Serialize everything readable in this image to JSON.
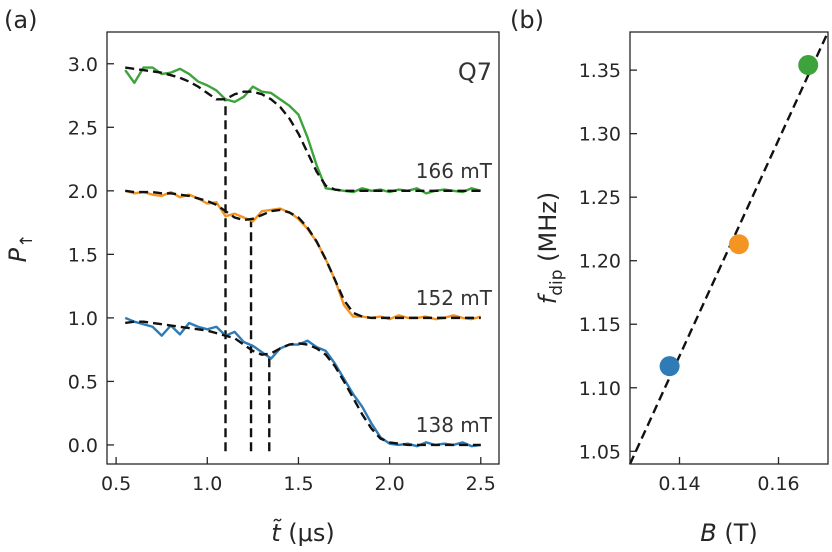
{
  "figure": {
    "panel_a_label": "(a)",
    "panel_b_label": "(b)",
    "panel_a_annotation": "Q7"
  },
  "colors": {
    "blue": "#2f7bb6",
    "orange": "#f39423",
    "green": "#3ea33a",
    "fit": "#111111",
    "axes": "#262626"
  },
  "chart_data": [
    {
      "type": "line",
      "panel": "a",
      "xlabel_main": "t̃",
      "xlabel_unit": " (μs)",
      "ylabel_main": "P",
      "ylabel_sub": "↑",
      "xlim": [
        0.45,
        2.6
      ],
      "ylim": [
        -0.15,
        3.25
      ],
      "xticks": [
        0.5,
        1.0,
        1.5,
        2.0,
        2.5
      ],
      "xtick_labels": [
        "0.5",
        "1.0",
        "1.5",
        "2.0",
        "2.5"
      ],
      "yticks": [
        0.0,
        0.5,
        1.0,
        1.5,
        2.0,
        2.5,
        3.0
      ],
      "ytick_labels": [
        "0.0",
        "0.5",
        "1.0",
        "1.5",
        "2.0",
        "2.5",
        "3.0"
      ],
      "grid": false,
      "series": [
        {
          "name": "138 mT",
          "color": "blue",
          "x": [
            0.55,
            0.6,
            0.65,
            0.7,
            0.75,
            0.8,
            0.85,
            0.9,
            0.95,
            1.0,
            1.05,
            1.1,
            1.15,
            1.2,
            1.25,
            1.3,
            1.35,
            1.4,
            1.45,
            1.5,
            1.55,
            1.6,
            1.65,
            1.7,
            1.75,
            1.8,
            1.85,
            1.9,
            1.95,
            2.0,
            2.05,
            2.1,
            2.15,
            2.2,
            2.25,
            2.3,
            2.35,
            2.4,
            2.45,
            2.5
          ],
          "y": [
            1.0,
            0.97,
            0.95,
            0.93,
            0.86,
            0.94,
            0.87,
            0.96,
            0.93,
            0.91,
            0.93,
            0.86,
            0.89,
            0.81,
            0.78,
            0.73,
            0.68,
            0.76,
            0.79,
            0.79,
            0.82,
            0.77,
            0.74,
            0.64,
            0.52,
            0.4,
            0.3,
            0.17,
            0.06,
            0.01,
            0.0,
            0.01,
            -0.01,
            0.02,
            0.0,
            0.01,
            0.0,
            0.02,
            -0.01,
            0.0
          ],
          "fit_y": [
            0.96,
            0.97,
            0.97,
            0.96,
            0.95,
            0.94,
            0.93,
            0.92,
            0.91,
            0.9,
            0.88,
            0.86,
            0.84,
            0.79,
            0.74,
            0.71,
            0.72,
            0.76,
            0.79,
            0.8,
            0.79,
            0.76,
            0.71,
            0.62,
            0.5,
            0.37,
            0.24,
            0.13,
            0.05,
            0.02,
            0.01,
            0.0,
            0.0,
            0.0,
            0.0,
            0.0,
            0.0,
            0.0,
            0.0,
            0.0
          ]
        },
        {
          "name": "152 mT",
          "color": "orange",
          "x": [
            0.55,
            0.6,
            0.65,
            0.7,
            0.75,
            0.8,
            0.85,
            0.9,
            0.95,
            1.0,
            1.05,
            1.1,
            1.15,
            1.2,
            1.25,
            1.3,
            1.35,
            1.4,
            1.45,
            1.5,
            1.55,
            1.6,
            1.65,
            1.7,
            1.75,
            1.8,
            1.85,
            1.9,
            1.95,
            2.0,
            2.05,
            2.1,
            2.15,
            2.2,
            2.25,
            2.3,
            2.35,
            2.4,
            2.45,
            2.5
          ],
          "y": [
            2.0,
            1.98,
            1.99,
            1.97,
            1.96,
            1.99,
            1.95,
            1.97,
            1.94,
            1.9,
            1.91,
            1.8,
            1.82,
            1.79,
            1.76,
            1.84,
            1.85,
            1.86,
            1.83,
            1.78,
            1.7,
            1.6,
            1.46,
            1.3,
            1.1,
            1.01,
            1.01,
            1.0,
            1.01,
            0.99,
            1.02,
            1.0,
            1.0,
            1.01,
            0.99,
            1.0,
            1.02,
            1.0,
            0.99,
            1.01
          ],
          "fit_y": [
            2.0,
            1.99,
            1.99,
            1.99,
            1.98,
            1.98,
            1.97,
            1.96,
            1.94,
            1.92,
            1.89,
            1.84,
            1.79,
            1.77,
            1.78,
            1.81,
            1.84,
            1.85,
            1.83,
            1.79,
            1.71,
            1.6,
            1.46,
            1.3,
            1.14,
            1.04,
            1.01,
            1.0,
            1.0,
            1.0,
            1.0,
            1.0,
            1.0,
            1.0,
            1.0,
            1.0,
            1.0,
            1.0,
            1.0,
            1.0
          ]
        },
        {
          "name": "166 mT",
          "color": "green",
          "x": [
            0.55,
            0.6,
            0.65,
            0.7,
            0.75,
            0.8,
            0.85,
            0.9,
            0.95,
            1.0,
            1.05,
            1.1,
            1.15,
            1.2,
            1.25,
            1.3,
            1.35,
            1.4,
            1.45,
            1.5,
            1.55,
            1.6,
            1.65,
            1.7,
            1.75,
            1.8,
            1.85,
            1.9,
            1.95,
            2.0,
            2.05,
            2.1,
            2.15,
            2.2,
            2.25,
            2.3,
            2.35,
            2.4,
            2.45,
            2.5
          ],
          "y": [
            2.95,
            2.85,
            2.97,
            2.97,
            2.92,
            2.93,
            2.96,
            2.92,
            2.86,
            2.83,
            2.79,
            2.72,
            2.7,
            2.74,
            2.82,
            2.78,
            2.77,
            2.72,
            2.67,
            2.6,
            2.42,
            2.2,
            2.02,
            2.01,
            2.0,
            1.99,
            2.02,
            2.0,
            2.01,
            1.99,
            2.01,
            2.0,
            2.02,
            1.98,
            2.0,
            2.01,
            2.0,
            1.99,
            2.02,
            2.0
          ],
          "fit_y": [
            2.97,
            2.96,
            2.95,
            2.94,
            2.93,
            2.91,
            2.89,
            2.86,
            2.82,
            2.77,
            2.72,
            2.72,
            2.76,
            2.78,
            2.78,
            2.76,
            2.72,
            2.66,
            2.57,
            2.45,
            2.3,
            2.15,
            2.04,
            2.01,
            2.0,
            2.0,
            2.0,
            2.0,
            2.0,
            2.0,
            2.0,
            2.0,
            2.0,
            2.0,
            2.0,
            2.0,
            2.0,
            2.0,
            2.0,
            2.0
          ]
        }
      ],
      "vlines": [
        {
          "x": 1.1,
          "y0": -0.05,
          "y1": 2.72
        },
        {
          "x": 1.24,
          "y0": -0.05,
          "y1": 1.77
        },
        {
          "x": 1.34,
          "y0": -0.05,
          "y1": 0.71
        }
      ]
    },
    {
      "type": "scatter",
      "panel": "b",
      "xlabel_main": "B",
      "xlabel_unit": " (T)",
      "ylabel_main": "f",
      "ylabel_sub": "dip",
      "ylabel_unit": " (MHz)",
      "xlim": [
        0.13,
        0.17
      ],
      "ylim": [
        1.04,
        1.38
      ],
      "xticks": [
        0.14,
        0.16
      ],
      "xtick_labels": [
        "0.14",
        "0.16"
      ],
      "yticks": [
        1.05,
        1.1,
        1.15,
        1.2,
        1.25,
        1.3,
        1.35
      ],
      "ytick_labels": [
        "1.05",
        "1.10",
        "1.15",
        "1.20",
        "1.25",
        "1.30",
        "1.35"
      ],
      "grid": false,
      "points": [
        {
          "x": 0.138,
          "y": 1.117,
          "color": "blue"
        },
        {
          "x": 0.152,
          "y": 1.213,
          "color": "orange"
        },
        {
          "x": 0.166,
          "y": 1.354,
          "color": "green"
        }
      ],
      "fit_line": {
        "x": [
          0.13,
          0.17
        ],
        "y": [
          1.04,
          1.38
        ]
      }
    }
  ]
}
